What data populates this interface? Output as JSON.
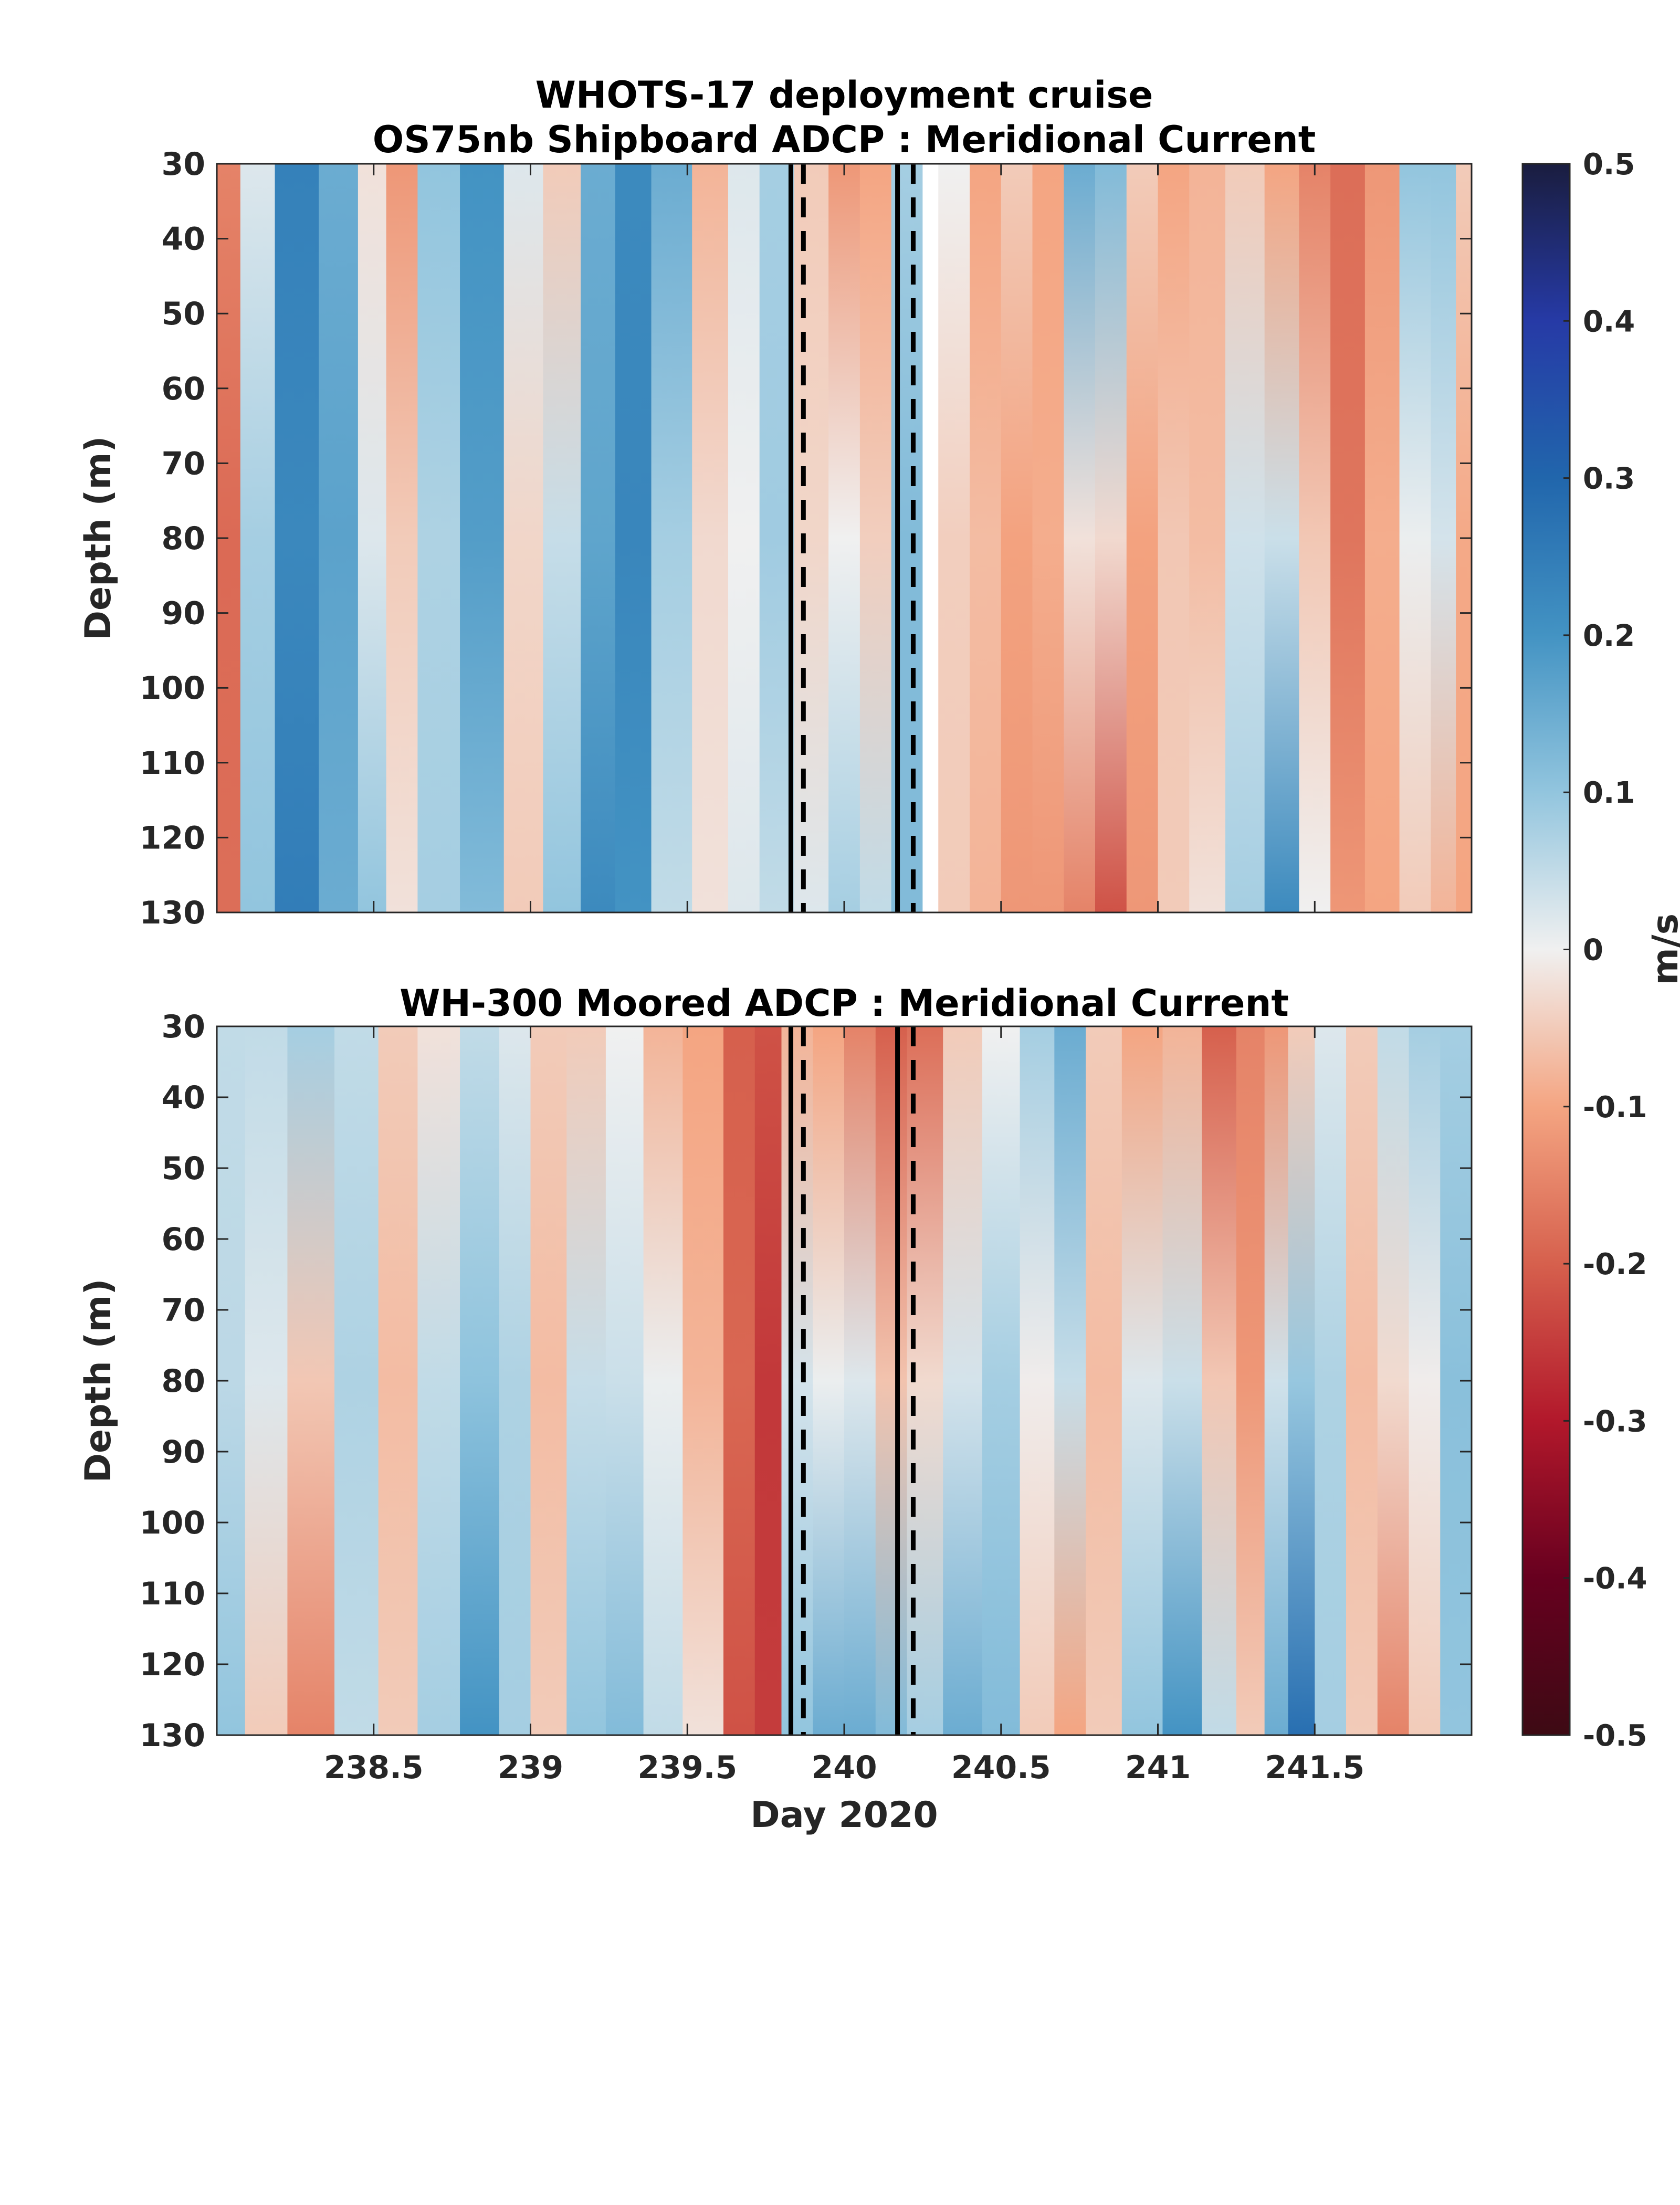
{
  "figure": {
    "suptitle": "WHOTS-17 deployment cruise",
    "colorbar": {
      "label": "m/s",
      "ticks": [
        "0.5",
        "0.4",
        "0.3",
        "0.2",
        "0.1",
        "0",
        "-0.1",
        "-0.2",
        "-0.3",
        "-0.4",
        "-0.5"
      ],
      "colors": [
        "#1a1d3f",
        "#263aa6",
        "#2166ac",
        "#4393c3",
        "#92c5de",
        "#f0f0f0",
        "#f4a582",
        "#d6604d",
        "#b2182b",
        "#67001f",
        "#3d0a14"
      ]
    }
  },
  "chart_data": [
    {
      "type": "heatmap",
      "title": "OS75nb Shipboard ADCP : Meridional Current",
      "xlabel": "",
      "ylabel": "Depth (m)",
      "xlim": [
        238.0,
        242.0
      ],
      "ylim": [
        130,
        30
      ],
      "y_reversed": true,
      "yticks": [
        "30",
        "40",
        "50",
        "60",
        "70",
        "80",
        "90",
        "100",
        "110",
        "120",
        "130"
      ],
      "xticks": [],
      "clim": [
        -0.5,
        0.5
      ],
      "colormap": "diverging blue-white-red",
      "data_gap": [
        240.25,
        240.3
      ],
      "solid_lines_x": [
        239.83,
        240.17
      ],
      "dashed_lines_x": [
        239.87,
        240.22
      ],
      "columns": [
        {
          "x": 238.03,
          "top": -0.15,
          "bottom": -0.18
        },
        {
          "x": 238.12,
          "top": 0.02,
          "bottom": 0.1
        },
        {
          "x": 238.25,
          "top": 0.24,
          "bottom": 0.25
        },
        {
          "x": 238.4,
          "top": 0.15,
          "bottom": 0.15
        },
        {
          "x": 238.5,
          "top": -0.02,
          "bottom": 0.1
        },
        {
          "x": 238.58,
          "top": -0.12,
          "bottom": -0.02
        },
        {
          "x": 238.7,
          "top": 0.1,
          "bottom": 0.08
        },
        {
          "x": 238.85,
          "top": 0.2,
          "bottom": 0.12
        },
        {
          "x": 238.98,
          "top": 0.02,
          "bottom": -0.05
        },
        {
          "x": 239.1,
          "top": -0.05,
          "bottom": 0.1
        },
        {
          "x": 239.22,
          "top": 0.15,
          "bottom": 0.22
        },
        {
          "x": 239.32,
          "top": 0.22,
          "bottom": 0.2
        },
        {
          "x": 239.45,
          "top": 0.15,
          "bottom": 0.05
        },
        {
          "x": 239.58,
          "top": -0.08,
          "bottom": -0.02
        },
        {
          "x": 239.68,
          "top": 0.02,
          "bottom": 0.02
        },
        {
          "x": 239.78,
          "top": 0.08,
          "bottom": 0.05
        },
        {
          "x": 239.9,
          "top": -0.05,
          "bottom": 0.02
        },
        {
          "x": 240.0,
          "top": -0.12,
          "bottom": 0.08
        },
        {
          "x": 240.1,
          "top": -0.1,
          "bottom": 0.05
        },
        {
          "x": 240.2,
          "top": 0.08,
          "bottom": 0.12
        },
        {
          "x": 240.35,
          "top": 0.0,
          "bottom": -0.05
        },
        {
          "x": 240.45,
          "top": -0.1,
          "bottom": -0.08
        },
        {
          "x": 240.55,
          "top": -0.05,
          "bottom": -0.12
        },
        {
          "x": 240.65,
          "top": -0.1,
          "bottom": -0.12
        },
        {
          "x": 240.75,
          "top": 0.15,
          "bottom": -0.15
        },
        {
          "x": 240.85,
          "top": 0.12,
          "bottom": -0.22
        },
        {
          "x": 240.95,
          "top": -0.05,
          "bottom": -0.12
        },
        {
          "x": 241.05,
          "top": -0.1,
          "bottom": -0.05
        },
        {
          "x": 241.15,
          "top": -0.08,
          "bottom": -0.02
        },
        {
          "x": 241.28,
          "top": -0.05,
          "bottom": 0.08
        },
        {
          "x": 241.4,
          "top": -0.1,
          "bottom": 0.22
        },
        {
          "x": 241.5,
          "top": -0.15,
          "bottom": 0.0
        },
        {
          "x": 241.6,
          "top": -0.18,
          "bottom": -0.12
        },
        {
          "x": 241.72,
          "top": -0.12,
          "bottom": -0.1
        },
        {
          "x": 241.82,
          "top": 0.1,
          "bottom": -0.05
        },
        {
          "x": 241.92,
          "top": 0.1,
          "bottom": -0.08
        },
        {
          "x": 241.98,
          "top": -0.05,
          "bottom": -0.1
        }
      ]
    },
    {
      "type": "heatmap",
      "title": "WH-300 Moored ADCP : Meridional Current",
      "xlabel": "Day 2020",
      "ylabel": "Depth (m)",
      "xlim": [
        238.0,
        242.0
      ],
      "ylim": [
        130,
        30
      ],
      "y_reversed": true,
      "yticks": [
        "30",
        "40",
        "50",
        "60",
        "70",
        "80",
        "90",
        "100",
        "110",
        "120",
        "130"
      ],
      "xticks": [
        "238.5",
        "239",
        "239.5",
        "240",
        "240.5",
        "241",
        "241.5"
      ],
      "clim": [
        -0.5,
        0.5
      ],
      "colormap": "diverging blue-white-red",
      "solid_lines_x": [
        239.83,
        240.17
      ],
      "dashed_lines_x": [
        239.87,
        240.22
      ],
      "columns": [
        {
          "x": 238.03,
          "top": 0.05,
          "bottom": 0.1
        },
        {
          "x": 238.15,
          "top": 0.05,
          "bottom": -0.05
        },
        {
          "x": 238.3,
          "top": 0.08,
          "bottom": -0.15
        },
        {
          "x": 238.45,
          "top": 0.05,
          "bottom": 0.05
        },
        {
          "x": 238.58,
          "top": -0.05,
          "bottom": -0.05
        },
        {
          "x": 238.7,
          "top": -0.02,
          "bottom": 0.08
        },
        {
          "x": 238.85,
          "top": 0.05,
          "bottom": 0.2
        },
        {
          "x": 238.95,
          "top": 0.02,
          "bottom": 0.08
        },
        {
          "x": 239.05,
          "top": -0.05,
          "bottom": -0.05
        },
        {
          "x": 239.18,
          "top": -0.05,
          "bottom": 0.1
        },
        {
          "x": 239.3,
          "top": 0.0,
          "bottom": 0.12
        },
        {
          "x": 239.42,
          "top": -0.08,
          "bottom": 0.05
        },
        {
          "x": 239.55,
          "top": -0.1,
          "bottom": -0.02
        },
        {
          "x": 239.68,
          "top": -0.2,
          "bottom": -0.22
        },
        {
          "x": 239.75,
          "top": -0.22,
          "bottom": -0.25
        },
        {
          "x": 239.85,
          "top": -0.08,
          "bottom": 0.1
        },
        {
          "x": 239.95,
          "top": -0.1,
          "bottom": 0.15
        },
        {
          "x": 240.05,
          "top": -0.15,
          "bottom": 0.15
        },
        {
          "x": 240.15,
          "top": -0.2,
          "bottom": 0.12
        },
        {
          "x": 240.25,
          "top": -0.18,
          "bottom": 0.08
        },
        {
          "x": 240.38,
          "top": -0.05,
          "bottom": 0.15
        },
        {
          "x": 240.5,
          "top": 0.0,
          "bottom": 0.12
        },
        {
          "x": 240.62,
          "top": 0.08,
          "bottom": -0.05
        },
        {
          "x": 240.72,
          "top": 0.15,
          "bottom": -0.1
        },
        {
          "x": 240.82,
          "top": -0.05,
          "bottom": -0.05
        },
        {
          "x": 240.95,
          "top": -0.1,
          "bottom": 0.1
        },
        {
          "x": 241.08,
          "top": -0.08,
          "bottom": 0.2
        },
        {
          "x": 241.2,
          "top": -0.2,
          "bottom": 0.05
        },
        {
          "x": 241.3,
          "top": -0.15,
          "bottom": -0.05
        },
        {
          "x": 241.38,
          "top": -0.12,
          "bottom": 0.15
        },
        {
          "x": 241.45,
          "top": -0.05,
          "bottom": 0.28
        },
        {
          "x": 241.55,
          "top": 0.02,
          "bottom": 0.08
        },
        {
          "x": 241.65,
          "top": -0.05,
          "bottom": -0.05
        },
        {
          "x": 241.75,
          "top": 0.05,
          "bottom": -0.15
        },
        {
          "x": 241.85,
          "top": 0.08,
          "bottom": -0.05
        },
        {
          "x": 241.95,
          "top": 0.08,
          "bottom": 0.1
        }
      ]
    }
  ]
}
